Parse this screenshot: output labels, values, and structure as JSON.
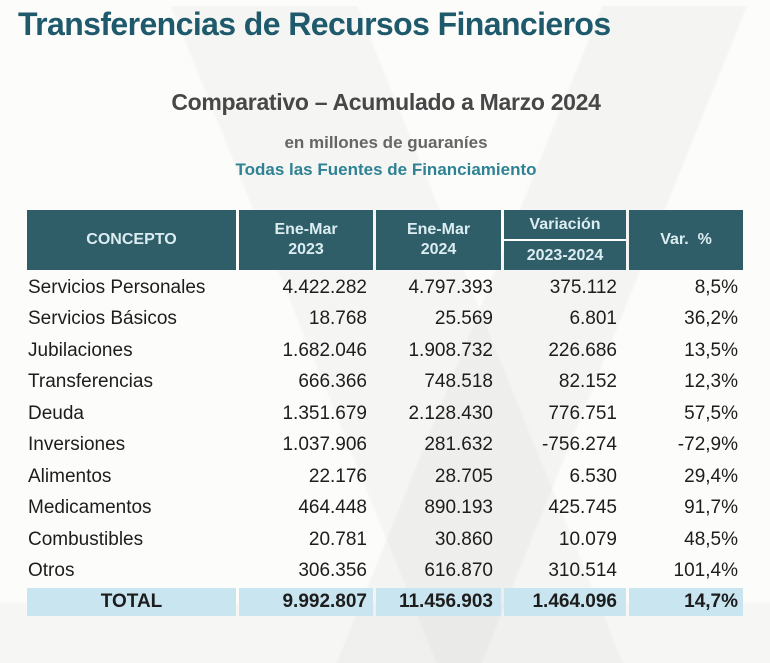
{
  "title": "Transferencias de Recursos Financieros",
  "subtitle": "Comparativo – Acumulado a Marzo 2024",
  "units_note": "en millones de guaraníes",
  "funding_note": "Todas las Fuentes de Financiamiento",
  "colors": {
    "title_teal": "#1E5A6B",
    "header_bg": "#2F5D68",
    "header_text": "#DCEDF2",
    "total_row_bg": "#C9E5F0",
    "funding_note_teal": "#2F8293",
    "subtitle_gray": "#474747",
    "units_gray": "#666666",
    "body_text": "#1D1D1D"
  },
  "table": {
    "headers": {
      "concepto": "CONCEPTO",
      "period_2023": "Ene-Mar\n2023",
      "period_2024": "Ene-Mar\n2024",
      "variacion": "Variación",
      "variacion_sub": "2023-2024",
      "var_pct": "Var.  %"
    },
    "rows": [
      {
        "concepto": "Servicios Personales",
        "ene_mar_2023": "4.422.282",
        "ene_mar_2024": "4.797.393",
        "variacion": "375.112",
        "var_pct": "8,5%"
      },
      {
        "concepto": "Servicios Básicos",
        "ene_mar_2023": "18.768",
        "ene_mar_2024": "25.569",
        "variacion": "6.801",
        "var_pct": "36,2%"
      },
      {
        "concepto": "Jubilaciones",
        "ene_mar_2023": "1.682.046",
        "ene_mar_2024": "1.908.732",
        "variacion": "226.686",
        "var_pct": "13,5%"
      },
      {
        "concepto": "Transferencias",
        "ene_mar_2023": "666.366",
        "ene_mar_2024": "748.518",
        "variacion": "82.152",
        "var_pct": "12,3%"
      },
      {
        "concepto": "Deuda",
        "ene_mar_2023": "1.351.679",
        "ene_mar_2024": "2.128.430",
        "variacion": "776.751",
        "var_pct": "57,5%"
      },
      {
        "concepto": "Inversiones",
        "ene_mar_2023": "1.037.906",
        "ene_mar_2024": "281.632",
        "variacion": "-756.274",
        "var_pct": "-72,9%"
      },
      {
        "concepto": "Alimentos",
        "ene_mar_2023": "22.176",
        "ene_mar_2024": "28.705",
        "variacion": "6.530",
        "var_pct": "29,4%"
      },
      {
        "concepto": "Medicamentos",
        "ene_mar_2023": "464.448",
        "ene_mar_2024": "890.193",
        "variacion": "425.745",
        "var_pct": "91,7%"
      },
      {
        "concepto": "Combustibles",
        "ene_mar_2023": "20.781",
        "ene_mar_2024": "30.860",
        "variacion": "10.079",
        "var_pct": "48,5%"
      },
      {
        "concepto": "Otros",
        "ene_mar_2023": "306.356",
        "ene_mar_2024": "616.870",
        "variacion": "310.514",
        "var_pct": "101,4%"
      }
    ],
    "total": {
      "label": "TOTAL",
      "ene_mar_2023": "9.992.807",
      "ene_mar_2024": "11.456.903",
      "variacion": "1.464.096",
      "var_pct": "14,7%"
    }
  },
  "chart_data": {
    "type": "table",
    "title": "Transferencias de Recursos Financieros",
    "subtitle": "Comparativo – Acumulado a Marzo 2024",
    "units": "en millones de guaraníes",
    "scope": "Todas las Fuentes de Financiamiento",
    "columns": [
      "CONCEPTO",
      "Ene-Mar 2023",
      "Ene-Mar 2024",
      "Variación 2023-2024",
      "Var. %"
    ],
    "rows": [
      [
        "Servicios Personales",
        4422282,
        4797393,
        375112,
        8.5
      ],
      [
        "Servicios Básicos",
        18768,
        25569,
        6801,
        36.2
      ],
      [
        "Jubilaciones",
        1682046,
        1908732,
        226686,
        13.5
      ],
      [
        "Transferencias",
        666366,
        748518,
        82152,
        12.3
      ],
      [
        "Deuda",
        1351679,
        2128430,
        776751,
        57.5
      ],
      [
        "Inversiones",
        1037906,
        281632,
        -756274,
        -72.9
      ],
      [
        "Alimentos",
        22176,
        28705,
        6530,
        29.4
      ],
      [
        "Medicamentos",
        464448,
        890193,
        425745,
        91.7
      ],
      [
        "Combustibles",
        20781,
        30860,
        10079,
        48.5
      ],
      [
        "Otros",
        306356,
        616870,
        310514,
        101.4
      ]
    ],
    "total_row": [
      "TOTAL",
      9992807,
      11456903,
      1464096,
      14.7
    ]
  }
}
